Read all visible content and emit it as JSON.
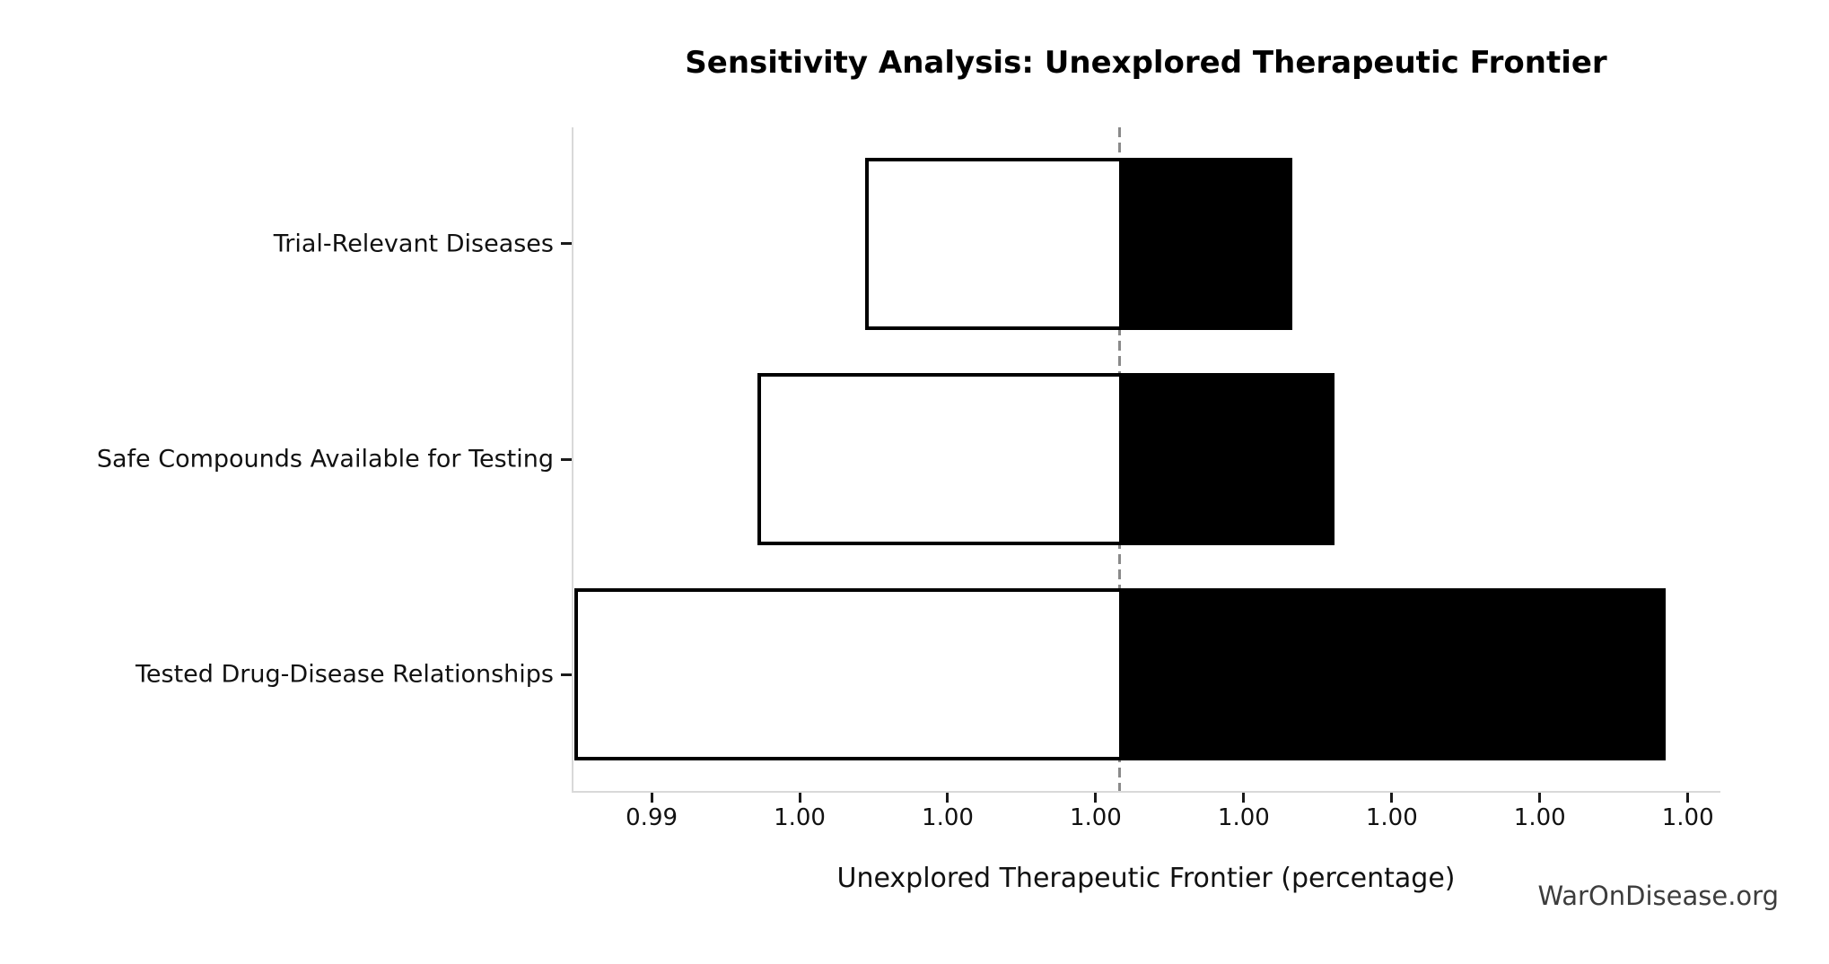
{
  "watermark": "WarOnDisease.org",
  "colors": {
    "background": "#ffffff",
    "bar_fill_high": "#000000",
    "bar_fill_low": "#ffffff",
    "bar_outline": "#000000",
    "baseline_line": "#8a8a8a",
    "axis_spine": "#d9d9d9",
    "tick_mark": "#1a1a1a",
    "text": "#111111",
    "watermark_text": "#3d3d3d"
  },
  "chart_data": {
    "type": "bar",
    "orientation": "horizontal",
    "subtype": "tornado-sensitivity",
    "title": "Sensitivity Analysis: Unexplored Therapeutic Frontier",
    "xlabel": "Unexplored Therapeutic Frontier (percentage)",
    "ylabel": "",
    "grid": false,
    "legend": null,
    "baseline": 0.9977,
    "baseline_style": "vertical dashed gray line",
    "xlim": [
      0.99309,
      1.00276
    ],
    "categories": [
      "Trial-Relevant Diseases",
      "Safe Compounds Available for Testing",
      "Tested Drug-Disease Relationships"
    ],
    "bars": [
      {
        "category": "Trial-Relevant Diseases",
        "low": 0.99555,
        "high": 0.99916
      },
      {
        "category": "Safe Compounds Available for Testing",
        "low": 0.99464,
        "high": 0.99952
      },
      {
        "category": "Tested Drug-Disease Relationships",
        "low": 0.9931,
        "high": 1.00231
      }
    ],
    "xticks": [
      {
        "value": 0.99375,
        "label": "0.99"
      },
      {
        "value": 0.995,
        "label": "1.00"
      },
      {
        "value": 0.99625,
        "label": "1.00"
      },
      {
        "value": 0.9975,
        "label": "1.00"
      },
      {
        "value": 0.99875,
        "label": "1.00"
      },
      {
        "value": 1.0,
        "label": "1.00"
      },
      {
        "value": 1.00125,
        "label": "1.00"
      },
      {
        "value": 1.0025,
        "label": "1.00"
      }
    ]
  }
}
